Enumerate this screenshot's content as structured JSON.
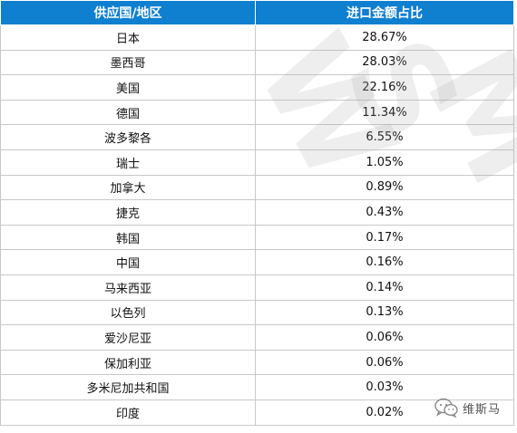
{
  "table": {
    "headers": [
      "供应国/地区",
      "进口金额占比"
    ],
    "rows": [
      [
        "日本",
        "28.67%"
      ],
      [
        "墨西哥",
        "28.03%"
      ],
      [
        "美国",
        "22.16%"
      ],
      [
        "德国",
        "11.34%"
      ],
      [
        "波多黎各",
        "6.55%"
      ],
      [
        "瑞士",
        "1.05%"
      ],
      [
        "加拿大",
        "0.89%"
      ],
      [
        "捷克",
        "0.43%"
      ],
      [
        "韩国",
        "0.17%"
      ],
      [
        "中国",
        "0.16%"
      ],
      [
        "马来西亚",
        "0.14%"
      ],
      [
        "以色列",
        "0.13%"
      ],
      [
        "爱沙尼亚",
        "0.06%"
      ],
      [
        "保加利亚",
        "0.06%"
      ],
      [
        "多米尼加共和国",
        "0.03%"
      ],
      [
        "印度",
        "0.02%"
      ]
    ]
  },
  "watermark": {
    "letters": [
      "W",
      "S",
      "M"
    ]
  },
  "brand": {
    "name": "维斯马",
    "icon": "wechat-icon"
  },
  "colors": {
    "header_bg": "#0f7fd0",
    "header_text": "#ffffff",
    "grid": "#c8c8c8"
  }
}
